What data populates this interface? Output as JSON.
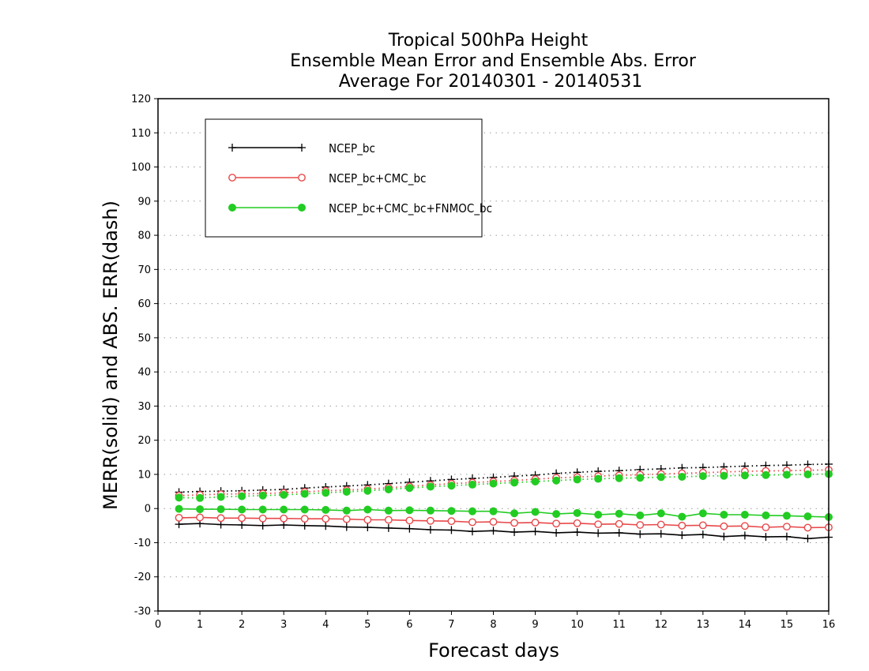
{
  "chart_data": {
    "type": "line",
    "title": [
      "Tropical 500hPa Height",
      "Ensemble Mean Error and Ensemble Abs. Error",
      "Average For 20140301 - 20140531"
    ],
    "xlabel": "Forecast days",
    "ylabel": "MERR(solid) and ABS. ERR(dash)",
    "xlim": [
      0,
      16
    ],
    "ylim": [
      -30,
      120
    ],
    "xticks": [
      "0",
      "1",
      "2",
      "3",
      "4",
      "5",
      "6",
      "7",
      "8",
      "9",
      "10",
      "11",
      "12",
      "13",
      "14",
      "15",
      "16"
    ],
    "yticks": [
      "-30",
      "-20",
      "-10",
      "0",
      "10",
      "20",
      "30",
      "40",
      "50",
      "60",
      "70",
      "80",
      "90",
      "100",
      "110",
      "120"
    ],
    "grid": true,
    "legend_position": "top-left",
    "x": [
      0.5,
      1,
      1.5,
      2,
      2.5,
      3,
      3.5,
      4,
      4.5,
      5,
      5.5,
      6,
      6.5,
      7,
      7.5,
      8,
      8.5,
      9,
      9.5,
      10,
      10.5,
      11,
      11.5,
      12,
      12.5,
      13,
      13.5,
      14,
      14.5,
      15,
      15.5,
      16
    ],
    "series": [
      {
        "name": "NCEP_bc",
        "color": "#000000",
        "marker": "plus",
        "merr": [
          -4.6,
          -4.4,
          -4.7,
          -4.8,
          -5.0,
          -4.8,
          -5.0,
          -5.1,
          -5.4,
          -5.5,
          -5.7,
          -5.9,
          -6.2,
          -6.3,
          -6.7,
          -6.5,
          -6.9,
          -6.7,
          -7.1,
          -6.9,
          -7.2,
          -7.1,
          -7.5,
          -7.4,
          -7.8,
          -7.6,
          -8.2,
          -7.9,
          -8.3,
          -8.2,
          -8.8,
          -8.4
        ],
        "abs_err": [
          4.8,
          5.0,
          5.1,
          5.2,
          5.4,
          5.6,
          6.0,
          6.3,
          6.6,
          6.9,
          7.3,
          7.7,
          8.1,
          8.5,
          8.8,
          9.1,
          9.5,
          9.8,
          10.3,
          10.6,
          10.9,
          11.1,
          11.4,
          11.6,
          11.9,
          12.0,
          12.2,
          12.4,
          12.6,
          12.7,
          12.9,
          13.0
        ]
      },
      {
        "name": "NCEP_bc+CMC_bc",
        "color": "#e8484a",
        "marker": "open-circle",
        "merr": [
          -2.7,
          -2.6,
          -2.8,
          -2.8,
          -2.9,
          -2.9,
          -3.0,
          -3.0,
          -3.1,
          -3.3,
          -3.3,
          -3.5,
          -3.6,
          -3.7,
          -4.0,
          -3.9,
          -4.2,
          -4.1,
          -4.4,
          -4.3,
          -4.6,
          -4.5,
          -4.8,
          -4.7,
          -5.0,
          -4.9,
          -5.2,
          -5.1,
          -5.5,
          -5.3,
          -5.6,
          -5.5
        ],
        "abs_err": [
          3.8,
          4.0,
          4.2,
          4.3,
          4.4,
          4.6,
          4.9,
          5.2,
          5.4,
          5.7,
          6.1,
          6.5,
          6.9,
          7.3,
          7.6,
          7.9,
          8.2,
          8.6,
          9.0,
          9.2,
          9.5,
          9.7,
          9.9,
          10.1,
          10.3,
          10.5,
          10.7,
          10.9,
          11.0,
          11.1,
          11.2,
          11.3
        ]
      },
      {
        "name": "NCEP_bc+CMC_bc+FNMOC_bc",
        "color": "#22cc22",
        "marker": "filled-circle",
        "merr": [
          -0.1,
          -0.2,
          -0.2,
          -0.3,
          -0.3,
          -0.3,
          -0.3,
          -0.4,
          -0.6,
          -0.3,
          -0.6,
          -0.5,
          -0.6,
          -0.7,
          -0.8,
          -0.8,
          -1.4,
          -1.0,
          -1.6,
          -1.3,
          -1.8,
          -1.5,
          -2.0,
          -1.4,
          -2.4,
          -1.4,
          -1.8,
          -1.8,
          -2.0,
          -2.1,
          -2.3,
          -2.5
        ],
        "abs_err": [
          3.2,
          3.1,
          3.4,
          3.6,
          3.8,
          4.0,
          4.3,
          4.6,
          4.9,
          5.2,
          5.6,
          6.0,
          6.4,
          6.7,
          7.0,
          7.3,
          7.6,
          7.9,
          8.2,
          8.5,
          8.7,
          8.9,
          9.0,
          9.2,
          9.3,
          9.5,
          9.6,
          9.7,
          9.8,
          9.9,
          10.0,
          10.1
        ]
      }
    ]
  }
}
